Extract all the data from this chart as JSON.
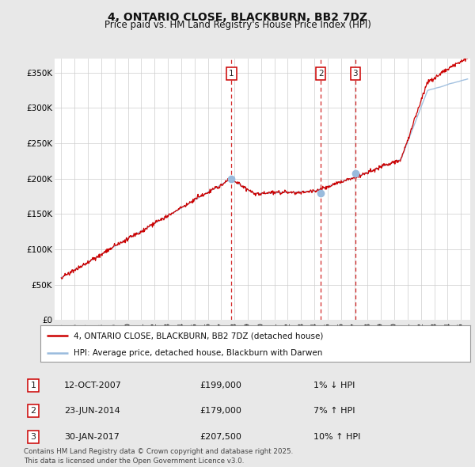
{
  "title": "4, ONTARIO CLOSE, BLACKBURN, BB2 7DZ",
  "subtitle": "Price paid vs. HM Land Registry's House Price Index (HPI)",
  "bg_color": "#e8e8e8",
  "plot_bg_color": "#ffffff",
  "grid_color": "#cccccc",
  "red_color": "#cc0000",
  "blue_color": "#99bbdd",
  "ytick_labels": [
    "£0",
    "£50K",
    "£100K",
    "£150K",
    "£200K",
    "£250K",
    "£300K",
    "£350K"
  ],
  "yticks": [
    0,
    50000,
    100000,
    150000,
    200000,
    250000,
    300000,
    350000
  ],
  "ylim": [
    0,
    370000
  ],
  "xlim_left": 1994.5,
  "xlim_right": 2025.7,
  "transactions": [
    {
      "date_num": 2007.78,
      "price": 199000,
      "label": "1"
    },
    {
      "date_num": 2014.48,
      "price": 179000,
      "label": "2"
    },
    {
      "date_num": 2017.08,
      "price": 207500,
      "label": "3"
    }
  ],
  "legend_entries": [
    {
      "label": "4, ONTARIO CLOSE, BLACKBURN, BB2 7DZ (detached house)",
      "color": "#cc0000"
    },
    {
      "label": "HPI: Average price, detached house, Blackburn with Darwen",
      "color": "#99bbdd"
    }
  ],
  "table_rows": [
    {
      "num": "1",
      "date": "12-OCT-2007",
      "price": "£199,000",
      "pct": "1% ↓ HPI"
    },
    {
      "num": "2",
      "date": "23-JUN-2014",
      "price": "£179,000",
      "pct": "7% ↑ HPI"
    },
    {
      "num": "3",
      "date": "30-JAN-2017",
      "price": "£207,500",
      "pct": "10% ↑ HPI"
    }
  ],
  "footnote": "Contains HM Land Registry data © Crown copyright and database right 2025.\nThis data is licensed under the Open Government Licence v3.0."
}
